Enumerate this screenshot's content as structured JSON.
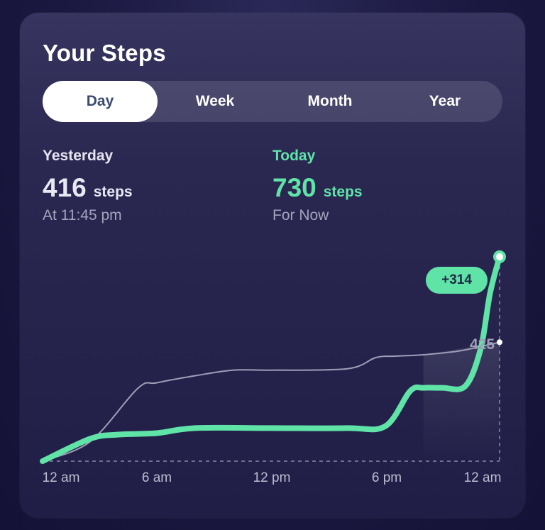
{
  "header": {
    "title": "Your Steps"
  },
  "tabs": [
    {
      "label": "Day",
      "active": true
    },
    {
      "label": "Week",
      "active": false
    },
    {
      "label": "Month",
      "active": false
    },
    {
      "label": "Year",
      "active": false
    }
  ],
  "yesterday": {
    "label": "Yesterday",
    "value": "416",
    "unit": "steps",
    "subtitle": "At 11:45 pm"
  },
  "today": {
    "label": "Today",
    "value": "730",
    "unit": "steps",
    "subtitle": "For Now"
  },
  "colors": {
    "today": "#5fe3a7",
    "yesterday": "#9f9eb7"
  },
  "chart_data": {
    "type": "line",
    "x_unit": "hours since 12 am",
    "xlim": [
      0,
      24
    ],
    "ylim": [
      0,
      750
    ],
    "xticks": [
      {
        "label": "12 am",
        "x": 0
      },
      {
        "label": "6 am",
        "x": 6
      },
      {
        "label": "12 pm",
        "x": 12
      },
      {
        "label": "6 pm",
        "x": 18
      },
      {
        "label": "12 am",
        "x": 24
      }
    ],
    "series": [
      {
        "name": "Today",
        "color": "#5fe3a7",
        "points": [
          [
            0,
            0
          ],
          [
            2.5,
            80
          ],
          [
            4,
            95
          ],
          [
            6,
            100
          ],
          [
            8,
            118
          ],
          [
            12,
            118
          ],
          [
            16,
            118
          ],
          [
            18,
            125
          ],
          [
            19.3,
            250
          ],
          [
            20,
            262
          ],
          [
            21,
            262
          ],
          [
            22.2,
            268
          ],
          [
            23,
            400
          ],
          [
            23.5,
            600
          ],
          [
            24,
            730
          ]
        ],
        "end_badge": "+314"
      },
      {
        "name": "Yesterday",
        "color": "#9f9eb7",
        "points": [
          [
            0,
            0
          ],
          [
            2.5,
            70
          ],
          [
            5,
            260
          ],
          [
            6,
            280
          ],
          [
            8,
            305
          ],
          [
            10,
            325
          ],
          [
            12,
            325
          ],
          [
            16,
            330
          ],
          [
            17.5,
            370
          ],
          [
            18.5,
            375
          ],
          [
            20,
            380
          ],
          [
            22,
            395
          ],
          [
            24,
            425
          ]
        ],
        "end_label": "425"
      }
    ]
  }
}
